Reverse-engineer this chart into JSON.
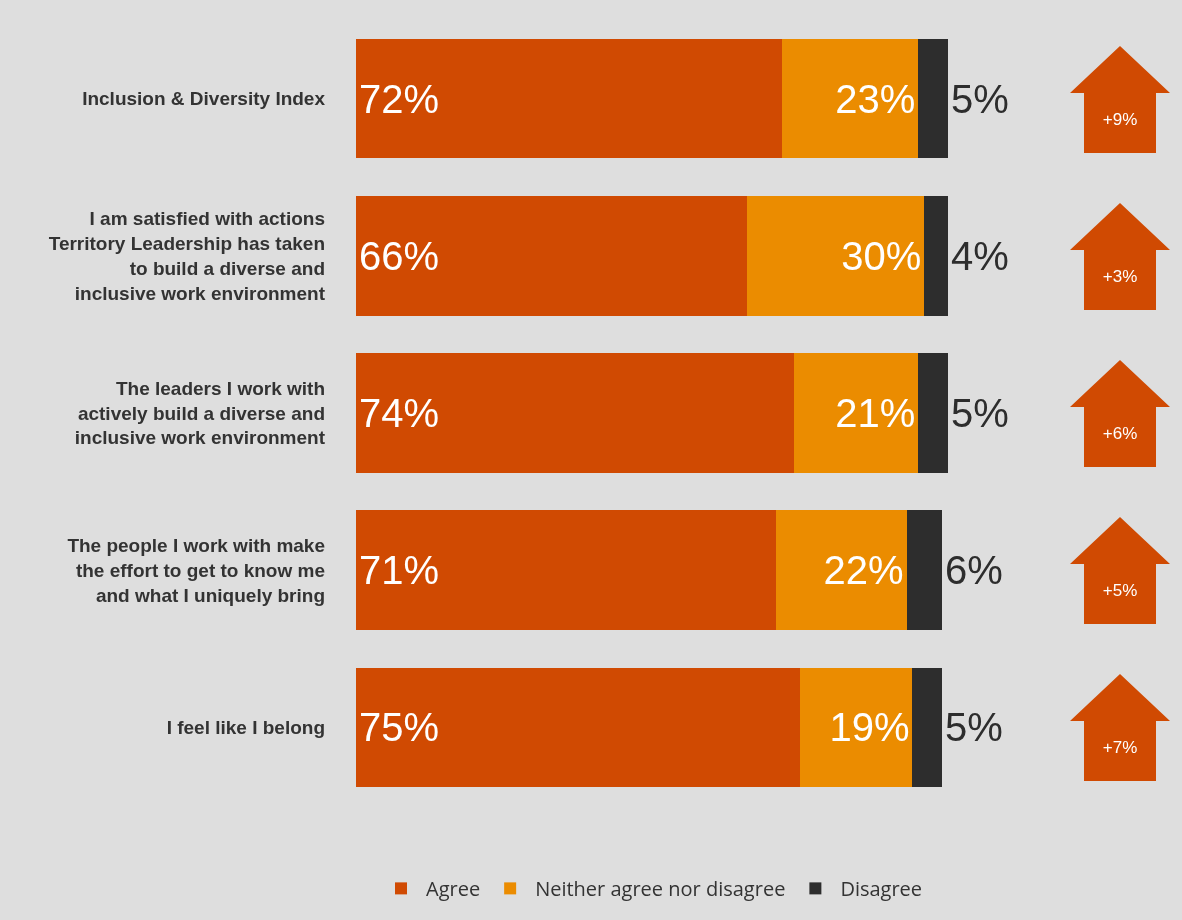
{
  "chart_data": {
    "type": "bar",
    "orientation": "horizontal",
    "stacked": true,
    "categories": [
      "Inclusion & Diversity Index",
      "I am satisfied with actions Territory Leadership has taken to build a diverse and inclusive work environment",
      "The leaders I work with actively build a diverse and inclusive work environment",
      "The people I work with make the effort to get to know me and what I uniquely bring",
      "I feel like I belong"
    ],
    "series": [
      {
        "name": "Agree",
        "color": "#d04a02",
        "values": [
          72,
          66,
          74,
          71,
          75
        ],
        "value_labels": [
          "72%",
          "66%",
          "74%",
          "71%",
          "75%"
        ]
      },
      {
        "name": "Neither agree nor disagree",
        "color": "#eb8c00",
        "values": [
          23,
          30,
          21,
          22,
          19
        ],
        "value_labels": [
          "23%",
          "30%",
          "21%",
          "22%",
          "19%"
        ]
      },
      {
        "name": "Disagree",
        "color": "#2d2d2d",
        "values": [
          5,
          4,
          5,
          6,
          5
        ],
        "value_labels": [
          "5%",
          "4%",
          "5%",
          "6%",
          "5%"
        ]
      }
    ],
    "xlim": [
      0,
      100
    ],
    "tick_labels": "y",
    "legend": "bottom",
    "annotations": [
      "+9%",
      "+3%",
      "+6%",
      "+5%",
      "+7%"
    ]
  }
}
